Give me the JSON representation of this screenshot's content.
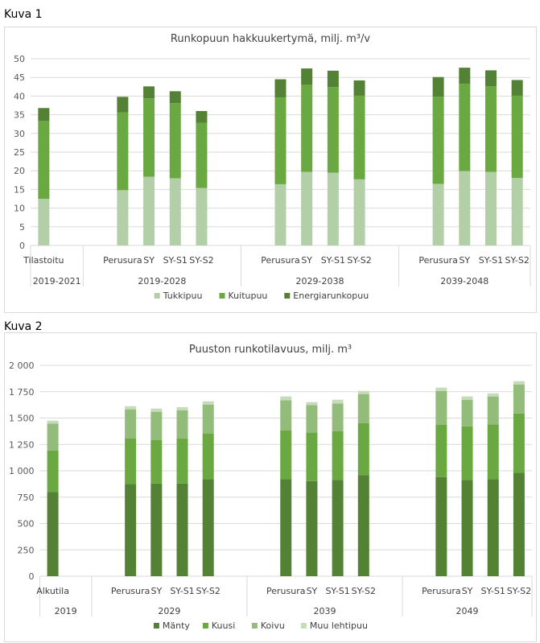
{
  "figures": [
    {
      "label": "Kuva 1"
    },
    {
      "label": "Kuva 2"
    }
  ],
  "chart_data": [
    {
      "type": "bar",
      "stacked": true,
      "title": "Runkopuun hakkuukertymä, milj. m³/v",
      "ylim": [
        0,
        50
      ],
      "yticks": [
        "0",
        "5",
        "10",
        "15",
        "20",
        "25",
        "30",
        "35",
        "40",
        "45",
        "50"
      ],
      "grid": true,
      "legend": "bottom",
      "groups": [
        {
          "label": "2019-2021",
          "categories": [
            "Tilastoitu"
          ]
        },
        {
          "label": "2019-2028",
          "categories": [
            "Perusura",
            "SY",
            "SY-S1",
            "SY-S2"
          ]
        },
        {
          "label": "2029-2038",
          "categories": [
            "Perusura",
            "SY",
            "SY-S1",
            "SY-S2"
          ]
        },
        {
          "label": "2039-2048",
          "categories": [
            "Perusura",
            "SY",
            "SY-S1",
            "SY-S2"
          ]
        }
      ],
      "series": [
        {
          "name": "Tukkipuu",
          "color": "#b3cfa7",
          "values": [
            12.5,
            14.8,
            18.4,
            18.0,
            15.4,
            16.4,
            19.7,
            19.5,
            17.7,
            16.5,
            19.9,
            19.7,
            18.1
          ]
        },
        {
          "name": "Kuitupuu",
          "color": "#6aa842",
          "values": [
            20.9,
            20.8,
            21.0,
            20.1,
            17.4,
            23.2,
            23.4,
            22.9,
            22.4,
            23.3,
            23.4,
            22.9,
            22.0
          ]
        },
        {
          "name": "Energiarunkopuu",
          "color": "#548235",
          "values": [
            3.4,
            4.2,
            3.2,
            3.2,
            3.2,
            4.9,
            4.3,
            4.4,
            4.1,
            5.3,
            4.3,
            4.3,
            4.2
          ]
        }
      ]
    },
    {
      "type": "bar",
      "stacked": true,
      "title": "Puuston runkotilavuus, milj. m³",
      "ylim": [
        0,
        2000
      ],
      "yticks": [
        "0",
        "250",
        "500",
        "750",
        "1 000",
        "1 250",
        "1 500",
        "1 750",
        "2 000"
      ],
      "grid": true,
      "legend": "bottom",
      "groups": [
        {
          "label": "2019",
          "categories": [
            "Alkutila"
          ]
        },
        {
          "label": "2029",
          "categories": [
            "Perusura",
            "SY",
            "SY-S1",
            "SY-S2"
          ]
        },
        {
          "label": "2039",
          "categories": [
            "Perusura",
            "SY",
            "SY-S1",
            "SY-S2"
          ]
        },
        {
          "label": "2049",
          "categories": [
            "Perusura",
            "SY",
            "SY-S1",
            "SY-S2"
          ]
        }
      ],
      "series": [
        {
          "name": "Mänty",
          "color": "#548235",
          "values": [
            800,
            875,
            880,
            880,
            921,
            921,
            903,
            913,
            959,
            941,
            913,
            921,
            982
          ]
        },
        {
          "name": "Kuusi",
          "color": "#6aa842",
          "values": [
            393,
            433,
            413,
            425,
            433,
            461,
            461,
            464,
            494,
            497,
            509,
            519,
            562
          ]
        },
        {
          "name": "Koivu",
          "color": "#93bb79",
          "values": [
            255,
            275,
            267,
            268,
            274,
            287,
            259,
            262,
            275,
            320,
            252,
            265,
            275
          ]
        },
        {
          "name": "Muu lehtipuu",
          "color": "#c5dbb9",
          "values": [
            28,
            30,
            30,
            30,
            31,
            36,
            28,
            35,
            30,
            31,
            31,
            30,
            31
          ]
        }
      ]
    }
  ]
}
